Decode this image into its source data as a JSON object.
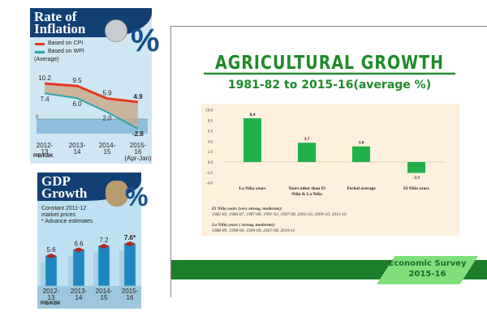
{
  "chart_data": [
    {
      "type": "line",
      "title": "Rate of Inflation",
      "subtitle": "(Average)",
      "categories": [
        "2012-13",
        "2013-14",
        "2014-15",
        "2015-16 (Apr-Jan)"
      ],
      "category_lines": [
        [
          "2012-",
          "13"
        ],
        [
          "2013-",
          "14"
        ],
        [
          "2014-",
          "15"
        ],
        [
          "2015-",
          "16",
          "(Apr-Jan)"
        ]
      ],
      "series": [
        {
          "name": "Based on CPI",
          "values": [
            10.2,
            9.5,
            5.9,
            4.9
          ],
          "color": "#e8381e"
        },
        {
          "name": "Based on WPI",
          "values": [
            7.4,
            6.0,
            2.0,
            -2.8
          ],
          "color": "#2aa6a8"
        }
      ],
      "zero_label": "0",
      "source": "PIB/KBK"
    },
    {
      "type": "bar",
      "title": "GDP Growth",
      "notes": [
        "Constant 2011-12",
        "market prices",
        "* Advance estimates"
      ],
      "categories": [
        "2012-13",
        "2013-14",
        "2014-15",
        "2015-16"
      ],
      "category_lines": [
        [
          "2012-",
          "13"
        ],
        [
          "2013-",
          "14"
        ],
        [
          "2014-",
          "15"
        ],
        [
          "2015-",
          "16"
        ]
      ],
      "values": [
        5.6,
        6.6,
        7.2,
        7.6
      ],
      "value_labels": [
        "5.6",
        "6.6",
        "7.2",
        "7.6*"
      ],
      "source": "PIB/KBK"
    },
    {
      "type": "bar",
      "title": "AGRICULTURAL GROWTH",
      "subtitle": "1981-82 to 2015-16(average %)",
      "categories": [
        "La Niña years",
        "Years other than El Niño & La Niña",
        "Period average",
        "El Niño years"
      ],
      "category_lines": [
        [
          "La Niña years"
        ],
        [
          "Years other than El",
          "Niño & La Niña"
        ],
        [
          "Period average"
        ],
        [
          "El Niño years"
        ]
      ],
      "values": [
        8.4,
        3.7,
        3.0,
        -2.1
      ],
      "ylim": [
        -4,
        10
      ],
      "yticks": [
        "10.0",
        "8.0",
        "6.0",
        "4.0",
        "2.0",
        "0.0",
        "-2.0",
        "-4.0"
      ],
      "color": "#1fb24a",
      "footnotes": [
        "El Niño years (very strong, moderate):",
        "1982-83, 1986-87, 1987-88, 1991-92, 1997-98, 2002-03, 2009-10, 2015-16",
        "La Niña years ( strong,  moderate):",
        "1988-89, 1998-99, 1999-00, 2007-08, 2010-11"
      ]
    }
  ],
  "inflation": {
    "title1": "Rate of",
    "title2": "Inflation",
    "pct": "%"
  },
  "gdp": {
    "title1": "GDP",
    "title2": "Growth",
    "pct": "%"
  },
  "badge": {
    "line1": "Economic Survey",
    "line2": "2015-16"
  }
}
